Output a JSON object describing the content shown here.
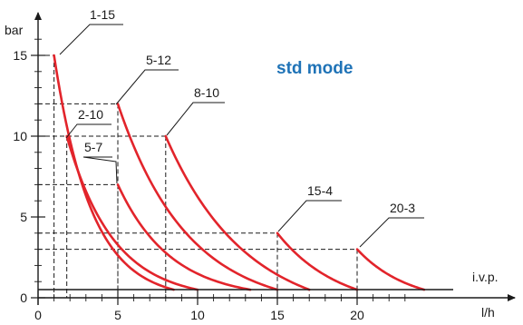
{
  "chart_data": {
    "type": "line",
    "title": "std mode",
    "xlabel": "l/h",
    "ylabel": "bar",
    "xlim": [
      0,
      28
    ],
    "ylim": [
      0,
      16.5
    ],
    "x_ticks": [
      0,
      5,
      10,
      15,
      20
    ],
    "y_ticks": [
      0,
      5,
      10,
      15
    ],
    "baseline": {
      "label": "i.v.p.",
      "y": 0.5
    },
    "colors": {
      "series": "#e2242b",
      "title": "#1f73b7"
    },
    "series": [
      {
        "name": "1-15",
        "start": [
          1.0,
          15.0
        ],
        "end": [
          8.5,
          0.5
        ],
        "curvature": 3.2
      },
      {
        "name": "2-10",
        "start": [
          1.8,
          10.0
        ],
        "end": [
          10.0,
          0.5
        ],
        "curvature": 2.8
      },
      {
        "name": "5-7",
        "start": [
          5.0,
          7.0
        ],
        "end": [
          13.3,
          0.5
        ],
        "curvature": 2.5
      },
      {
        "name": "5-12",
        "start": [
          5.0,
          12.0
        ],
        "end": [
          15.0,
          0.5
        ],
        "curvature": 2.3
      },
      {
        "name": "8-10",
        "start": [
          8.0,
          10.0
        ],
        "end": [
          17.0,
          0.5
        ],
        "curvature": 1.8
      },
      {
        "name": "15-4",
        "start": [
          15.0,
          4.0
        ],
        "end": [
          20.0,
          0.5
        ],
        "curvature": 1.3
      },
      {
        "name": "20-3",
        "start": [
          20.0,
          3.0
        ],
        "end": [
          24.2,
          0.5
        ],
        "curvature": 1.3
      }
    ]
  }
}
